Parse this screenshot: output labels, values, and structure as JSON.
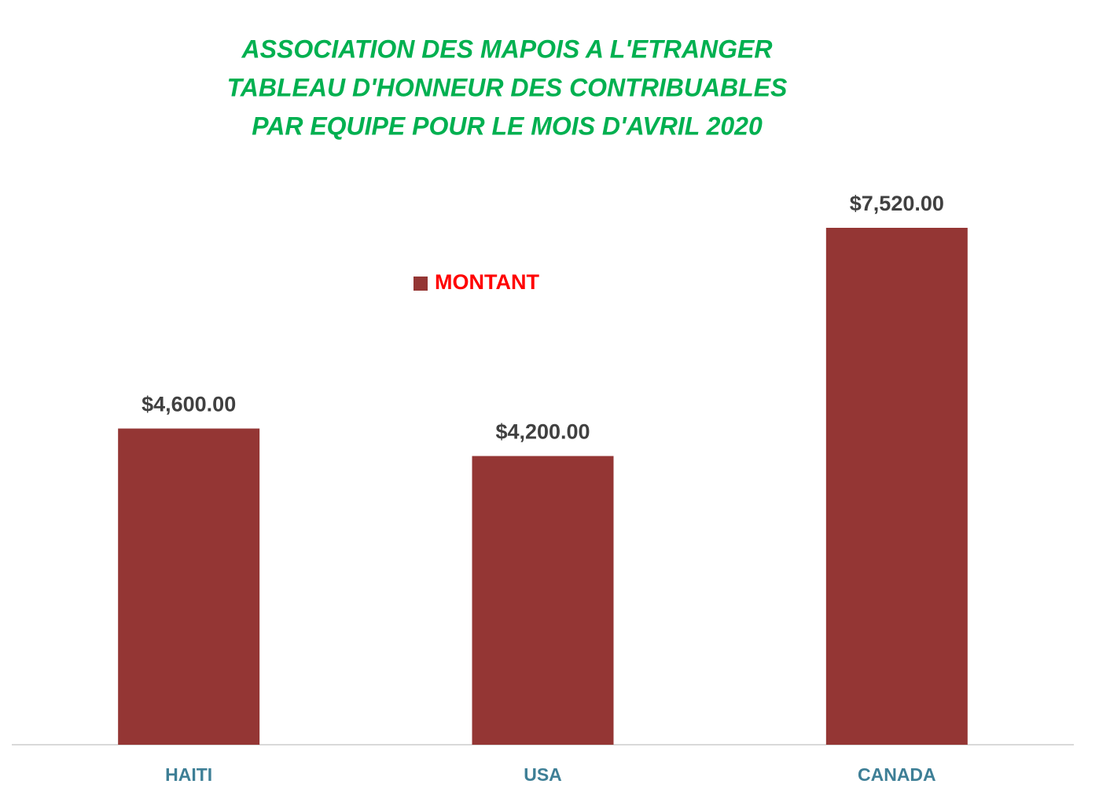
{
  "chart_data": {
    "type": "bar",
    "title": [
      "ASSOCIATION DES MAPOIS A L'ETRANGER",
      "TABLEAU D'HONNEUR DES CONTRIBUABLES",
      "PAR EQUIPE POUR LE MOIS D'AVRIL 2020"
    ],
    "categories": [
      "HAITI",
      "USA",
      "CANADA"
    ],
    "series": [
      {
        "name": "MONTANT",
        "color": "#943634",
        "values": [
          4600,
          4200,
          7520
        ],
        "value_labels": [
          "$4,600.00",
          "$4,200.00",
          "$7,520.00"
        ]
      }
    ],
    "title_color": "#00b050",
    "legend_color": "#ff0000",
    "category_color": "#3e7f96",
    "legend": "top-center"
  }
}
